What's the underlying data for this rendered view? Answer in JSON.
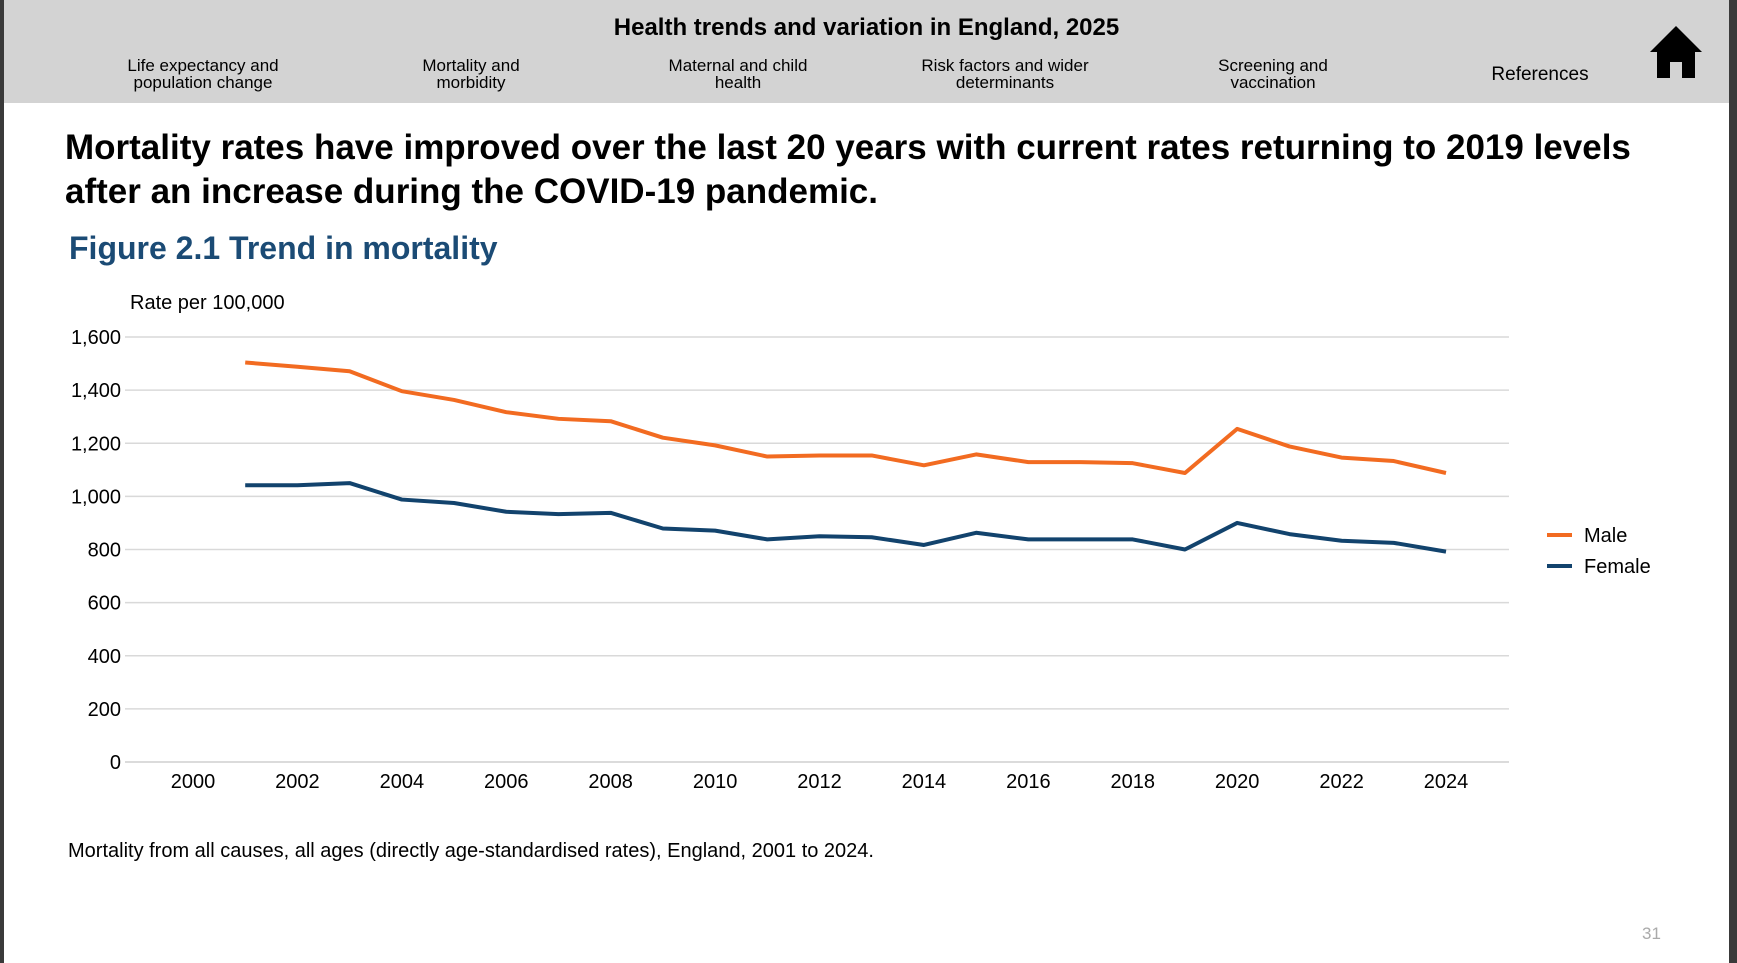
{
  "header": {
    "title": "Health trends and variation in England, 2025",
    "nav": [
      {
        "line1": "Life expectancy and",
        "line2": "population change"
      },
      {
        "line1": "Mortality and",
        "line2": "morbidity"
      },
      {
        "line1": "Maternal and child",
        "line2": "health"
      },
      {
        "line1": "Risk factors and wider",
        "line2": "determinants"
      },
      {
        "line1": "Screening and",
        "line2": "vaccination"
      },
      {
        "line1": "References",
        "line2": ""
      }
    ],
    "home_icon": "home-icon"
  },
  "headline": "Mortality rates have improved over the last 20 years with current rates returning to 2019 levels after an increase during the COVID-19 pandemic.",
  "figure_title": "Figure 2.1 Trend in mortality",
  "caption": "Mortality from all causes, all ages (directly age-standardised rates), England, 2001 to 2024.",
  "page_number": "31",
  "chart_data": {
    "type": "line",
    "title": "Figure 2.1 Trend in mortality",
    "xlabel": "",
    "ylabel": "Rate per 100,000",
    "xlim": [
      1999,
      2025
    ],
    "ylim": [
      0,
      1600
    ],
    "x_ticks": [
      2000,
      2002,
      2004,
      2006,
      2008,
      2010,
      2012,
      2014,
      2016,
      2018,
      2020,
      2022,
      2024
    ],
    "y_ticks": [
      0,
      200,
      400,
      600,
      800,
      1000,
      1200,
      1400,
      1600
    ],
    "y_tick_labels": [
      "0",
      "200",
      "400",
      "600",
      "800",
      "1,000",
      "1,200",
      "1,400",
      "1,600"
    ],
    "grid": "horizontal",
    "legend_placement": "right",
    "x": [
      2001,
      2002,
      2003,
      2004,
      2005,
      2006,
      2007,
      2008,
      2009,
      2010,
      2011,
      2012,
      2013,
      2014,
      2015,
      2016,
      2017,
      2018,
      2019,
      2020,
      2021,
      2022,
      2023,
      2024
    ],
    "series": [
      {
        "name": "Male",
        "color": "#f26b21",
        "values": [
          1504,
          1488,
          1471,
          1396,
          1363,
          1317,
          1292,
          1283,
          1221,
          1192,
          1150,
          1154,
          1154,
          1117,
          1158,
          1129,
          1129,
          1125,
          1088,
          1254,
          1188,
          1146,
          1133,
          1088
        ]
      },
      {
        "name": "Female",
        "color": "#12436d",
        "values": [
          1042,
          1042,
          1050,
          988,
          975,
          942,
          933,
          938,
          879,
          871,
          838,
          850,
          846,
          817,
          863,
          838,
          838,
          838,
          800,
          900,
          858,
          833,
          825,
          792
        ]
      }
    ]
  }
}
